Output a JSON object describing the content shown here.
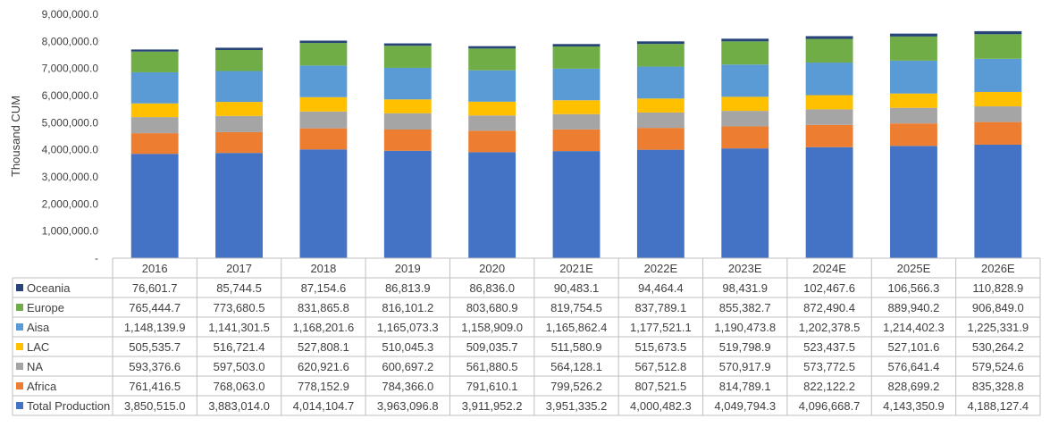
{
  "chart_data": {
    "type": "bar",
    "stacked": true,
    "ylabel": "Thousand CUM",
    "ylim": [
      0,
      9000000
    ],
    "y_ticks": [
      "-",
      "1,000,000.0",
      "2,000,000.0",
      "3,000,000.0",
      "4,000,000.0",
      "5,000,000.0",
      "6,000,000.0",
      "7,000,000.0",
      "8,000,000.0",
      "9,000,000.0"
    ],
    "gridlines": false,
    "legend": "data-table",
    "categories": [
      "2016",
      "2017",
      "2018",
      "2019",
      "2020",
      "2021E",
      "2022E",
      "2023E",
      "2024E",
      "2025E",
      "2026E"
    ],
    "series": [
      {
        "name": "Total Production",
        "color": "#4472C4",
        "values": [
          3850515.0,
          3883014.0,
          4014104.7,
          3963096.8,
          3911952.2,
          3951335.2,
          4000482.3,
          4049794.3,
          4096668.7,
          4143350.9,
          4188127.4
        ],
        "labels": [
          "3,850,515.0",
          "3,883,014.0",
          "4,014,104.7",
          "3,963,096.8",
          "3,911,952.2",
          "3,951,335.2",
          "4,000,482.3",
          "4,049,794.3",
          "4,096,668.7",
          "4,143,350.9",
          "4,188,127.4"
        ]
      },
      {
        "name": "Africa",
        "color": "#ED7D31",
        "values": [
          761416.5,
          768063.0,
          778152.9,
          784366.0,
          791610.1,
          799526.2,
          807521.5,
          814789.1,
          822122.2,
          828699.2,
          835328.8
        ],
        "labels": [
          "761,416.5",
          "768,063.0",
          "778,152.9",
          "784,366.0",
          "791,610.1",
          "799,526.2",
          "807,521.5",
          "814,789.1",
          "822,122.2",
          "828,699.2",
          "835,328.8"
        ]
      },
      {
        "name": "NA",
        "color": "#A5A5A5",
        "values": [
          593376.6,
          597503.0,
          620921.6,
          600697.2,
          561880.5,
          564128.1,
          567512.8,
          570917.9,
          573772.5,
          576641.4,
          579524.6
        ],
        "labels": [
          "593,376.6",
          "597,503.0",
          "620,921.6",
          "600,697.2",
          "561,880.5",
          "564,128.1",
          "567,512.8",
          "570,917.9",
          "573,772.5",
          "576,641.4",
          "579,524.6"
        ]
      },
      {
        "name": "LAC",
        "color": "#FFC000",
        "values": [
          505535.7,
          516721.4,
          527808.1,
          510045.3,
          509035.7,
          511580.9,
          515673.5,
          519798.9,
          523437.5,
          527101.6,
          530264.2
        ],
        "labels": [
          "505,535.7",
          "516,721.4",
          "527,808.1",
          "510,045.3",
          "509,035.7",
          "511,580.9",
          "515,673.5",
          "519,798.9",
          "523,437.5",
          "527,101.6",
          "530,264.2"
        ]
      },
      {
        "name": "Aisa",
        "color": "#5B9BD5",
        "values": [
          1148139.9,
          1141301.5,
          1168201.6,
          1165073.3,
          1158909.0,
          1165862.4,
          1177521.1,
          1190473.8,
          1202378.5,
          1214402.3,
          1225331.9
        ],
        "labels": [
          "1,148,139.9",
          "1,141,301.5",
          "1,168,201.6",
          "1,165,073.3",
          "1,158,909.0",
          "1,165,862.4",
          "1,177,521.1",
          "1,190,473.8",
          "1,202,378.5",
          "1,214,402.3",
          "1,225,331.9"
        ]
      },
      {
        "name": "Europe",
        "color": "#70AD47",
        "values": [
          765444.7,
          773680.5,
          831865.8,
          816101.2,
          803680.9,
          819754.5,
          837789.1,
          855382.7,
          872490.4,
          889940.2,
          906849.0
        ],
        "labels": [
          "765,444.7",
          "773,680.5",
          "831,865.8",
          "816,101.2",
          "803,680.9",
          "819,754.5",
          "837,789.1",
          "855,382.7",
          "872,490.4",
          "889,940.2",
          "906,849.0"
        ]
      },
      {
        "name": "Oceania",
        "color": "#264478",
        "values": [
          76601.7,
          85744.5,
          87154.6,
          86813.9,
          86836.0,
          90483.1,
          94464.4,
          98431.9,
          102467.6,
          106566.3,
          110828.9
        ],
        "labels": [
          "76,601.7",
          "85,744.5",
          "87,154.6",
          "86,813.9",
          "86,836.0",
          "90,483.1",
          "94,464.4",
          "98,431.9",
          "102,467.6",
          "106,566.3",
          "110,828.9"
        ]
      }
    ]
  }
}
